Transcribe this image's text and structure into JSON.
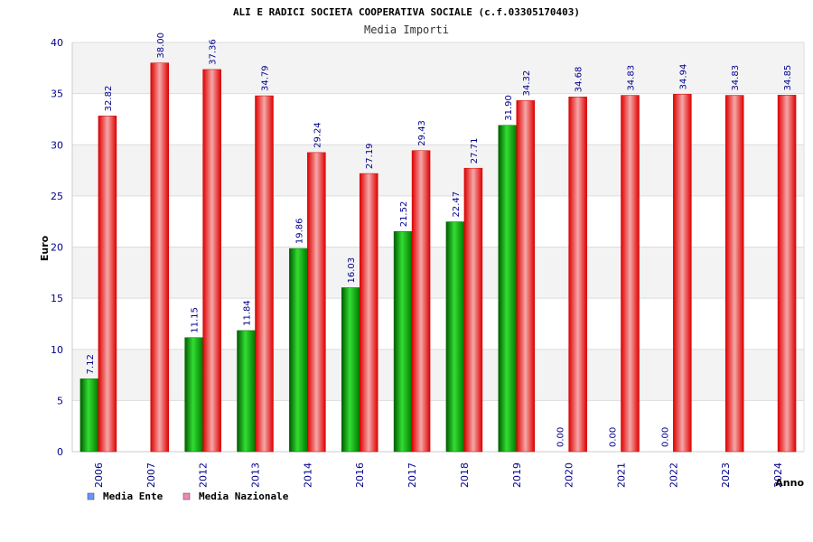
{
  "chart_data": {
    "type": "bar",
    "title": "ALI E RADICI SOCIETA COOPERATIVA SOCIALE (c.f.03305170403)",
    "subtitle": "Media Importi",
    "xlabel": "Anno",
    "ylabel": "Euro",
    "ylim": [
      0,
      40
    ],
    "yticks": [
      0,
      5,
      10,
      15,
      20,
      25,
      30,
      35,
      40
    ],
    "grid": true,
    "legend": "bottom-left",
    "categories": [
      "2006",
      "2007",
      "2012",
      "2013",
      "2014",
      "2016",
      "2017",
      "2018",
      "2019",
      "2020",
      "2021",
      "2022",
      "2023",
      "2024"
    ],
    "series": [
      {
        "name": "Media Ente",
        "color": "#00a000",
        "legend_color": "#6699ff",
        "values": [
          7.12,
          null,
          11.15,
          11.84,
          19.86,
          16.03,
          21.52,
          22.47,
          31.9,
          0.0,
          0.0,
          0.0,
          null,
          null
        ],
        "labels": [
          "7.12",
          "",
          "11.15",
          "11.84",
          "19.86",
          "16.03",
          "21.52",
          "22.47",
          "31.90",
          "0.00",
          "0.00",
          "0.00",
          "",
          ""
        ]
      },
      {
        "name": "Media Nazionale",
        "color": "#ee1111",
        "legend_color": "#ee88bb",
        "values": [
          32.82,
          38.0,
          37.36,
          34.79,
          29.24,
          27.19,
          29.43,
          27.71,
          34.32,
          34.68,
          34.83,
          34.94,
          34.83,
          34.85
        ],
        "labels": [
          "32.82",
          "38.00",
          "37.36",
          "34.79",
          "29.24",
          "27.19",
          "29.43",
          "27.71",
          "34.32",
          "34.68",
          "34.83",
          "34.94",
          "34.83",
          "34.85"
        ]
      }
    ]
  }
}
